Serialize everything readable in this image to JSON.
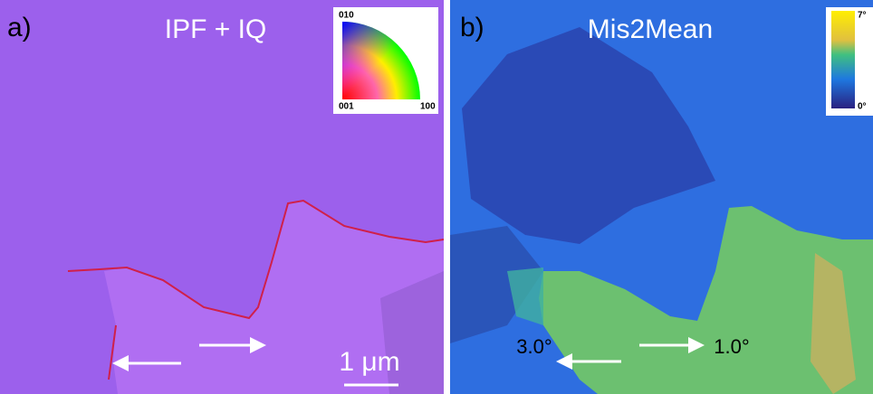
{
  "panels": [
    {
      "label": "a)",
      "title": "IPF + IQ",
      "legend": {
        "top": "010",
        "bottom_left": "001",
        "bottom_right": "100"
      },
      "scale_bar": "1 μm"
    },
    {
      "label": "b)",
      "title": "Mis2Mean",
      "colorbar": {
        "max": "7°",
        "min": "0°"
      },
      "annotations": [
        "3.0°",
        "1.0°"
      ]
    }
  ]
}
